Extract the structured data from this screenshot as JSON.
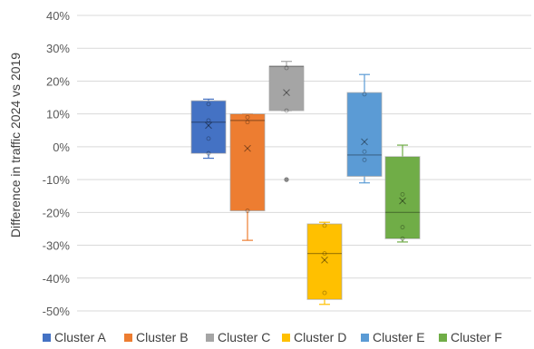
{
  "chart_data": {
    "type": "boxplot",
    "title": "",
    "xlabel": "",
    "ylabel": "Difference in traffic 2024 vs 2019",
    "ylim": [
      -50,
      40
    ],
    "yticks": [
      40,
      30,
      20,
      10,
      0,
      -10,
      -20,
      -30,
      -40,
      -50
    ],
    "ytick_labels": [
      "40%",
      "30%",
      "20%",
      "10%",
      "0%",
      "-10%",
      "-20%",
      "-30%",
      "-40%",
      "-50%"
    ],
    "grid": true,
    "legend_position": "bottom",
    "series": [
      {
        "name": "Cluster A",
        "color": "#4472C4",
        "min": -3.5,
        "q1": -2,
        "median": 7.5,
        "q3": 14,
        "max": 14.5,
        "mean": 6.5,
        "points": [
          13,
          8,
          2.5,
          -2
        ],
        "outliers": []
      },
      {
        "name": "Cluster B",
        "color": "#ED7D31",
        "min": -28.5,
        "q1": -19.5,
        "median": 8,
        "q3": 10,
        "max": 10,
        "mean": -0.5,
        "points": [
          9,
          7.5,
          -19.5
        ],
        "outliers": []
      },
      {
        "name": "Cluster C",
        "color": "#A5A5A5",
        "min": 11,
        "q1": 11,
        "median": 24.5,
        "q3": 24.5,
        "max": 26,
        "mean": 16.5,
        "points": [
          24,
          11
        ],
        "outliers": [
          -10
        ]
      },
      {
        "name": "Cluster D",
        "color": "#FFC000",
        "min": -48,
        "q1": -46.5,
        "median": -32.5,
        "q3": -23.5,
        "max": -23,
        "mean": -34.5,
        "points": [
          -24,
          -32.5,
          -44.5
        ],
        "outliers": []
      },
      {
        "name": "Cluster E",
        "color": "#5B9BD5",
        "min": -11,
        "q1": -9,
        "median": -2.5,
        "q3": 16.5,
        "max": 22,
        "mean": 1.5,
        "points": [
          16,
          -1.5,
          -4
        ],
        "outliers": []
      },
      {
        "name": "Cluster F",
        "color": "#70AD47",
        "min": -29,
        "q1": -28,
        "median": -20,
        "q3": -3,
        "max": 0.5,
        "mean": -16.5,
        "points": [
          -14.5,
          -24.5,
          -28
        ],
        "outliers": []
      }
    ]
  }
}
